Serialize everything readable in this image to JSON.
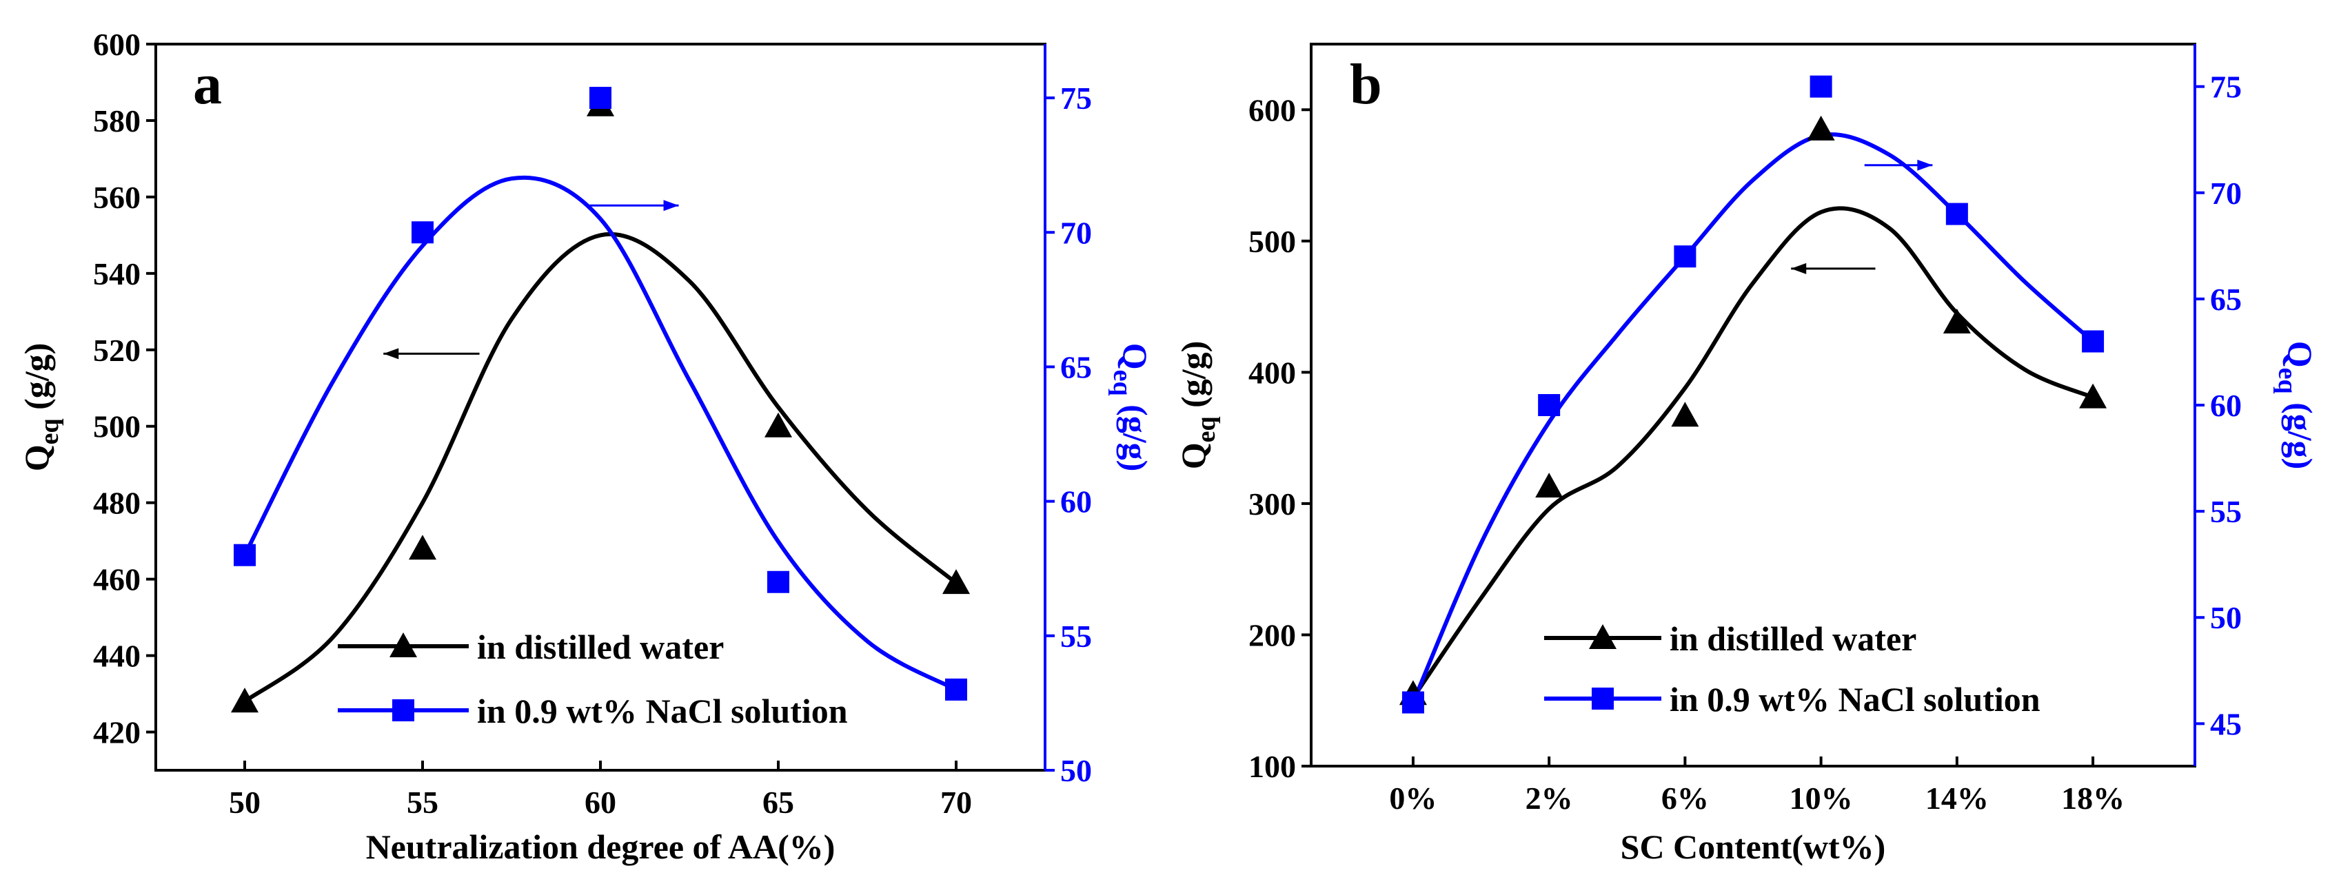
{
  "colors": {
    "left_series": "#000000",
    "right_series": "#0000ff"
  },
  "chart_data": [
    {
      "type": "line",
      "panel_label": "a",
      "xlabel": "Neutralization  degree  of  AA(%)",
      "ylabel_left": {
        "main": "Q",
        "sub": "eq",
        "unit": " (g/g)"
      },
      "ylabel_right": {
        "main": "Q",
        "sub": "eq",
        "unit": " (g/g)"
      },
      "x_ticks": [
        50,
        55,
        60,
        65,
        70
      ],
      "xlim": [
        47.5,
        72.5
      ],
      "ylim_left": [
        410,
        600
      ],
      "y_ticks_left": [
        420,
        440,
        460,
        480,
        500,
        520,
        540,
        560,
        580,
        600
      ],
      "ylim_right": [
        50,
        77
      ],
      "y_ticks_right": [
        50,
        55,
        60,
        65,
        70,
        75
      ],
      "series": [
        {
          "name": "in distilled water",
          "axis": "left",
          "marker": "triangle",
          "x": [
            50,
            55,
            60,
            65,
            70
          ],
          "values": [
            428,
            468,
            584,
            500,
            459
          ],
          "fit": [
            [
              50,
              428
            ],
            [
              52.5,
              445
            ],
            [
              55,
              480
            ],
            [
              57.5,
              528
            ],
            [
              60,
              550
            ],
            [
              62.5,
              538
            ],
            [
              65,
              505
            ],
            [
              67.5,
              478
            ],
            [
              70,
              459
            ]
          ]
        },
        {
          "name": "in 0.9 wt% NaCl solution",
          "axis": "right",
          "marker": "square",
          "x": [
            50,
            55,
            60,
            65,
            70
          ],
          "values": [
            58,
            70,
            75,
            57,
            53
          ],
          "fit": [
            [
              50,
              58
            ],
            [
              52.5,
              64.5
            ],
            [
              55,
              69.5
            ],
            [
              57.5,
              72
            ],
            [
              60,
              70.5
            ],
            [
              62.5,
              64.5
            ],
            [
              65,
              58.5
            ],
            [
              67.5,
              54.8
            ],
            [
              70,
              53
            ]
          ]
        }
      ],
      "arrows": [
        {
          "axis": "right",
          "direction": "right",
          "from": [
            59.7,
            71
          ],
          "to": [
            62.2,
            71
          ]
        },
        {
          "axis": "left",
          "direction": "left",
          "from": [
            56.6,
            519
          ],
          "to": [
            53.9,
            519
          ]
        }
      ]
    },
    {
      "type": "line",
      "panel_label": "b",
      "xlabel": "SC  Content(wt%)",
      "ylabel_left": {
        "main": "Q",
        "sub": "eq",
        "unit": " (g/g)"
      },
      "ylabel_right": {
        "main": "Q",
        "sub": "eq",
        "unit": " (g/g)"
      },
      "categories": [
        "0%",
        "2%",
        "6%",
        "10%",
        "14%",
        "18%"
      ],
      "xlim": [
        -0.75,
        5.75
      ],
      "ylim_left": [
        100,
        650
      ],
      "y_ticks_left": [
        100,
        200,
        300,
        400,
        500,
        600
      ],
      "ylim_right": [
        43,
        77
      ],
      "y_ticks_right": [
        45,
        50,
        55,
        60,
        65,
        70,
        75
      ],
      "series": [
        {
          "name": "in distilled water",
          "axis": "left",
          "marker": "triangle",
          "values": [
            155,
            313,
            367,
            585,
            438,
            381
          ],
          "fit": [
            [
              0,
              152
            ],
            [
              0.5,
              228
            ],
            [
              1,
              296
            ],
            [
              1.5,
              328
            ],
            [
              2,
              388
            ],
            [
              2.5,
              468
            ],
            [
              3,
              522
            ],
            [
              3.5,
              510
            ],
            [
              4,
              445
            ],
            [
              4.5,
              402
            ],
            [
              5,
              381
            ]
          ]
        },
        {
          "name": "in 0.9 wt% NaCl solution",
          "axis": "right",
          "marker": "square",
          "values": [
            46,
            60,
            67,
            75,
            69,
            63
          ],
          "fit": [
            [
              0,
              46
            ],
            [
              0.5,
              53.5
            ],
            [
              1,
              59.2
            ],
            [
              1.5,
              63.3
            ],
            [
              2,
              67
            ],
            [
              2.5,
              70.6
            ],
            [
              3,
              72.7
            ],
            [
              3.5,
              71.8
            ],
            [
              4,
              69
            ],
            [
              4.5,
              65.8
            ],
            [
              5,
              63
            ]
          ]
        }
      ],
      "arrows": [
        {
          "axis": "right",
          "direction": "right",
          "from": [
            3.32,
            71.3
          ],
          "to": [
            3.82,
            71.3
          ]
        },
        {
          "axis": "left",
          "direction": "left",
          "from": [
            3.4,
            479
          ],
          "to": [
            2.78,
            479
          ]
        }
      ]
    }
  ]
}
